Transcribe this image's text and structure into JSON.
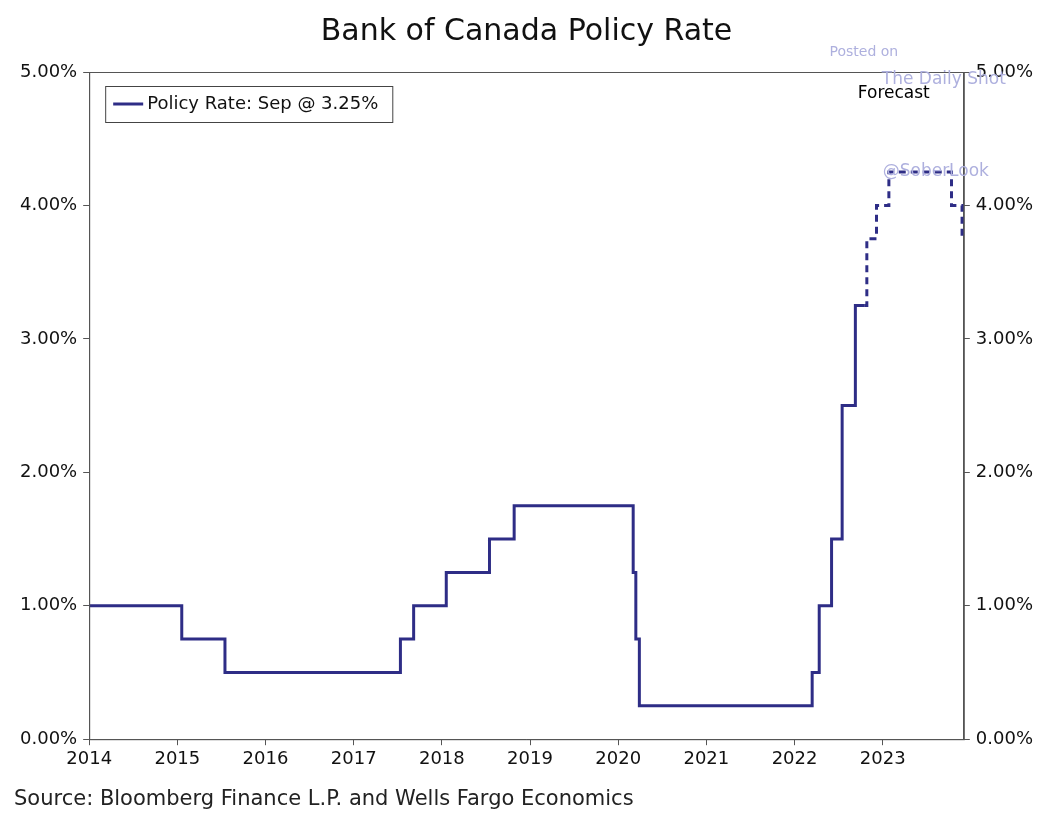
{
  "chart_data": {
    "type": "line",
    "title": "Bank of Canada Policy Rate",
    "source": "Source: Bloomberg Finance L.P. and Wells Fargo Economics",
    "annotations": [
      "Forecast"
    ],
    "watermark": [
      "Posted on",
      "The Daily Shot",
      "@SoberLook"
    ],
    "series": [
      {
        "name": "Policy Rate: Sep @ 3.25%",
        "color": "#2e2d86",
        "line_style": "solid",
        "x": [
          2014.0,
          2015.05,
          2015.54,
          2017.53,
          2017.68,
          2018.05,
          2018.54,
          2018.82,
          2020.17,
          2020.2,
          2020.24,
          2022.2,
          2022.28,
          2022.42,
          2022.54,
          2022.69,
          2022.79
        ],
        "values": [
          1.0,
          0.75,
          0.5,
          0.75,
          1.0,
          1.25,
          1.5,
          1.75,
          1.25,
          0.75,
          0.25,
          0.5,
          1.0,
          1.5,
          2.5,
          3.25,
          3.25
        ]
      },
      {
        "color": "#2e2d86",
        "line_style": "dashed",
        "x": [
          2022.79,
          2022.82,
          2022.93,
          2023.07,
          2023.78,
          2023.9
        ],
        "values": [
          3.25,
          3.75,
          4.0,
          4.25,
          4.0,
          3.75
        ]
      }
    ],
    "xlim": [
      2014,
      2023.92
    ],
    "xticks": [
      2014,
      2015,
      2016,
      2017,
      2018,
      2019,
      2020,
      2021,
      2022,
      2023
    ],
    "ylim": [
      0,
      5
    ],
    "yticks": [
      {
        "value": 0,
        "label": "0.00%"
      },
      {
        "value": 1,
        "label": "1.00%"
      },
      {
        "value": 2,
        "label": "2.00%"
      },
      {
        "value": 3,
        "label": "3.00%"
      },
      {
        "value": 4,
        "label": "4.00%"
      },
      {
        "value": 5,
        "label": "5.00%"
      }
    ],
    "y2lim": [
      0,
      5
    ],
    "y2ticks": [
      {
        "value": 0,
        "label": "0.00%"
      },
      {
        "value": 1,
        "label": "1.00%"
      },
      {
        "value": 2,
        "label": "2.00%"
      },
      {
        "value": 3,
        "label": "3.00%"
      },
      {
        "value": 4,
        "label": "4.00%"
      },
      {
        "value": 5,
        "label": "5.00%"
      }
    ],
    "grid": false,
    "legend": "upper left"
  }
}
